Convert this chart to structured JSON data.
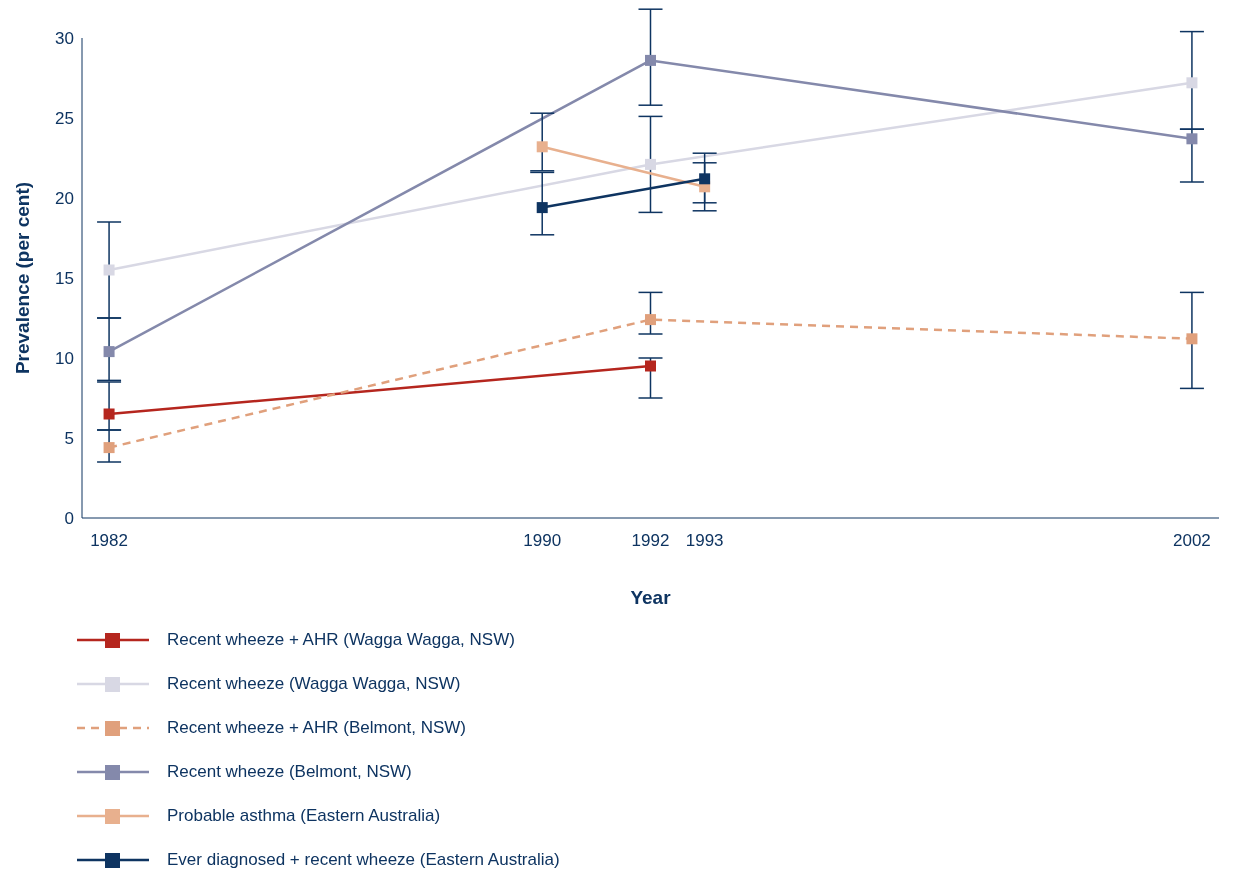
{
  "chart_data": {
    "type": "line",
    "xlabel": "Year",
    "ylabel": "Prevalence (per cent)",
    "xlim": [
      1981.5,
      2002.5
    ],
    "xticks": [
      1982,
      1990,
      1992,
      1993,
      2002
    ],
    "ylim": [
      0,
      30
    ],
    "yticks": [
      0,
      5,
      10,
      15,
      20,
      25,
      30
    ],
    "grid": false,
    "legend": "bottom",
    "marker": "square",
    "series": [
      {
        "name": "Recent wheeze + AHR (Wagga Wagga, NSW)",
        "color": "#b5261e",
        "line_style": "solid",
        "x": [
          1982,
          1992
        ],
        "values": [
          6.5,
          9.5
        ],
        "errors": [
          [
            5.5,
            8.5
          ],
          [
            7.5,
            10.0
          ]
        ]
      },
      {
        "name": "Recent wheeze (Wagga Wagga, NSW)",
        "color": "#d8d8e4",
        "line_style": "solid",
        "x": [
          1982,
          1992,
          2002
        ],
        "values": [
          15.5,
          22.1,
          27.2
        ],
        "errors": [
          [
            12.5,
            18.5
          ],
          [
            19.1,
            25.1
          ],
          [
            24.3,
            30.4
          ]
        ]
      },
      {
        "name": "Recent wheeze + AHR (Belmont, NSW)",
        "color": "#e0a07c",
        "line_style": "dashed",
        "x": [
          1982,
          1992,
          2002
        ],
        "values": [
          4.4,
          12.4,
          11.2
        ],
        "errors": [
          [
            3.5,
            5.5
          ],
          [
            11.5,
            14.1
          ],
          [
            8.1,
            14.1
          ]
        ]
      },
      {
        "name": "Recent wheeze (Belmont, NSW)",
        "color": "#8489ab",
        "line_style": "solid",
        "x": [
          1982,
          1992,
          2002
        ],
        "values": [
          10.4,
          28.6,
          23.7
        ],
        "errors": [
          [
            8.6,
            12.5
          ],
          [
            25.8,
            31.8
          ],
          [
            21.0,
            24.3
          ]
        ]
      },
      {
        "name": "Probable asthma (Eastern Australia)",
        "color": "#e8b08e",
        "line_style": "solid",
        "x": [
          1990,
          1993
        ],
        "values": [
          23.2,
          20.7
        ],
        "errors": [
          [
            21.7,
            25.3
          ],
          [
            19.2,
            22.2
          ]
        ]
      },
      {
        "name": "Ever diagnosed + recent wheeze (Eastern Australia)",
        "color": "#0e3461",
        "line_style": "solid",
        "x": [
          1990,
          1993
        ],
        "values": [
          19.4,
          21.2
        ],
        "errors": [
          [
            17.7,
            21.6
          ],
          [
            19.7,
            22.8
          ]
        ]
      }
    ]
  }
}
